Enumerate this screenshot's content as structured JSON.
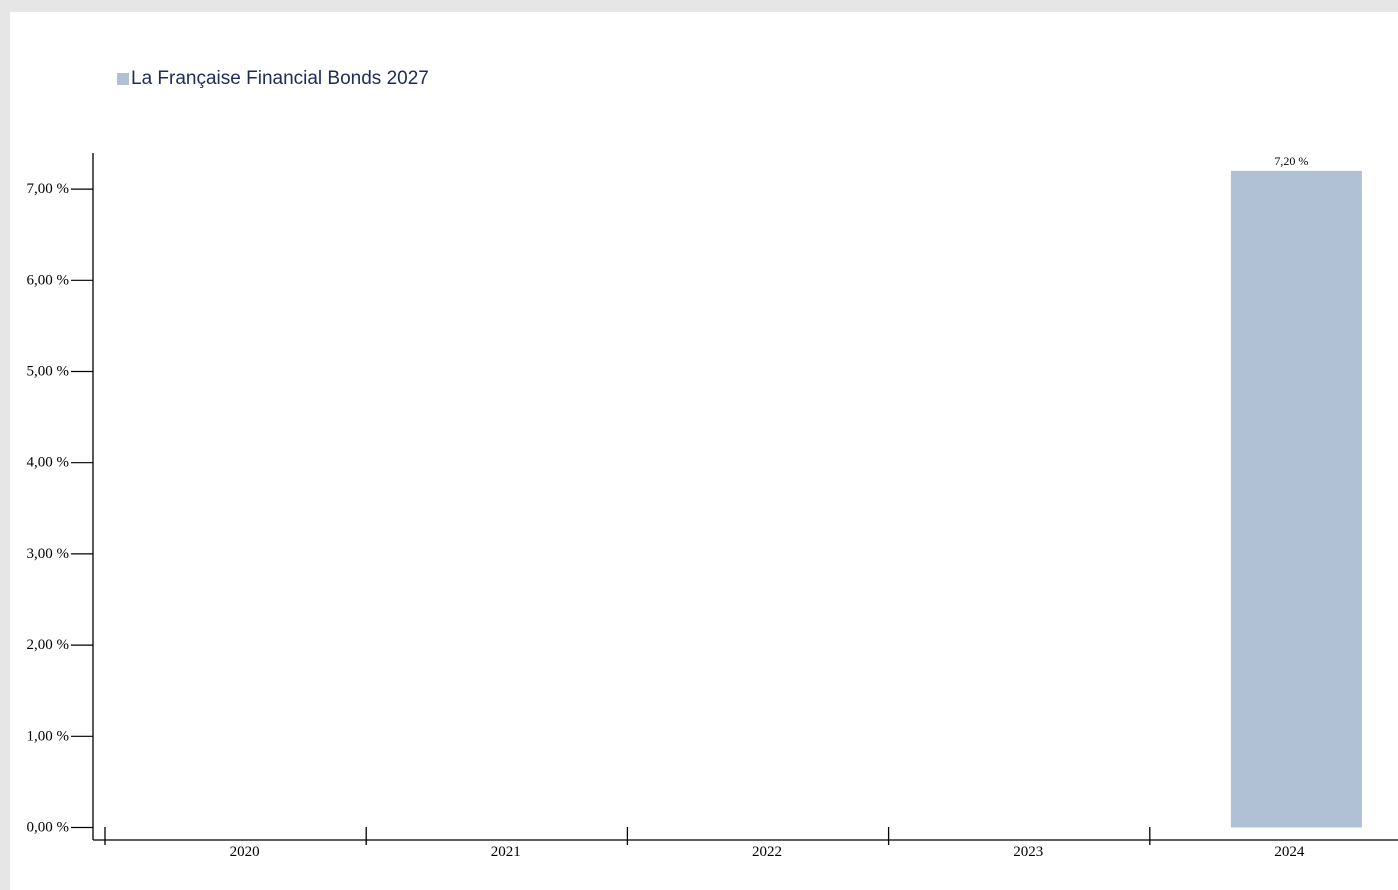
{
  "chart_data": {
    "type": "bar",
    "categories": [
      "2020",
      "2021",
      "2022",
      "2023",
      "2024"
    ],
    "series": [
      {
        "name": "La Française Financial Bonds 2027",
        "values": [
          null,
          null,
          null,
          null,
          7.2
        ],
        "color": "#b0c1d6"
      }
    ],
    "data_labels": [
      "",
      "",
      "",
      "",
      "7,20 %"
    ],
    "ylim": [
      0,
      7.3
    ],
    "yticks": [
      0,
      1,
      2,
      3,
      4,
      5,
      6,
      7
    ],
    "ytick_labels": [
      "0,00 %",
      "1,00 %",
      "2,00 %",
      "3,00 %",
      "4,00 %",
      "5,00 %",
      "6,00 %",
      "7,00 %"
    ],
    "legend_position": "top-left",
    "grid": false,
    "title": "",
    "xlabel": "",
    "ylabel": ""
  }
}
